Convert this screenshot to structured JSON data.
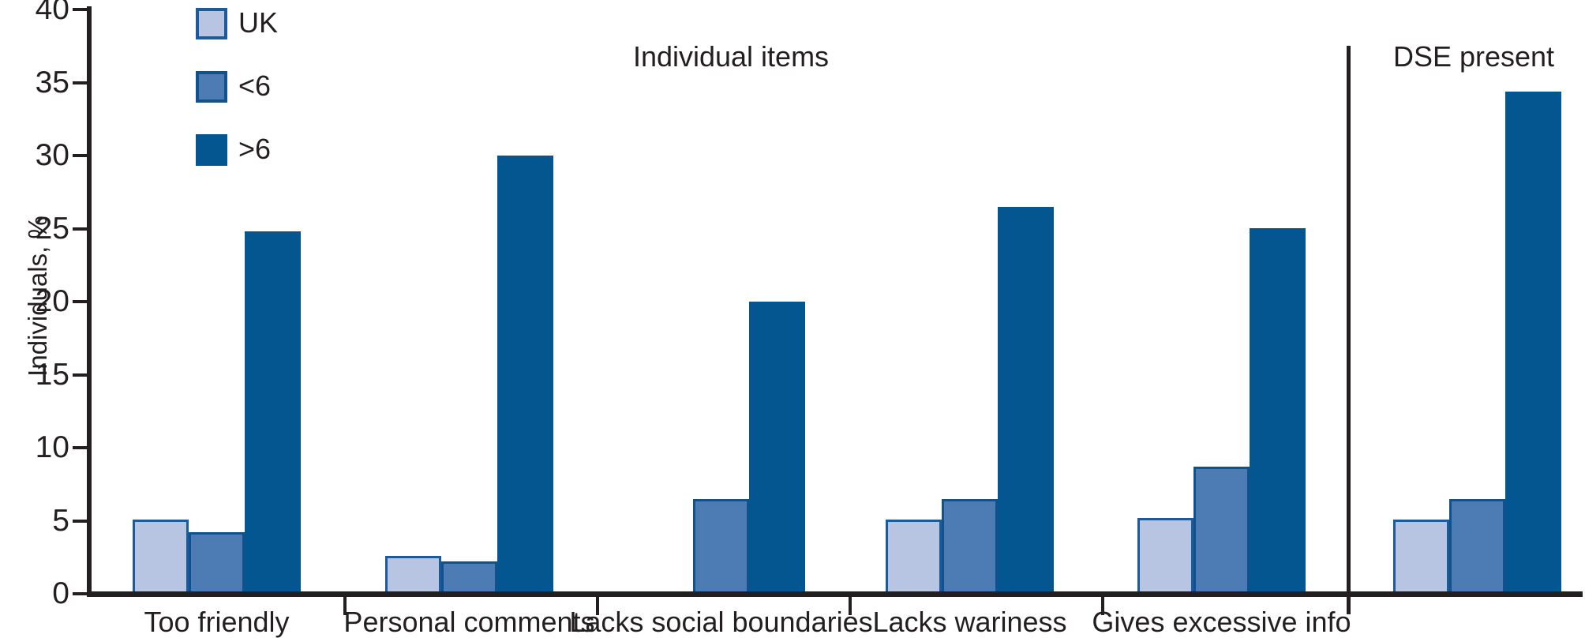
{
  "chart_data": {
    "type": "bar",
    "ylabel": "Individuals, %",
    "ylim": [
      0,
      40
    ],
    "yticks": [
      0,
      5,
      10,
      15,
      20,
      25,
      30,
      35,
      40
    ],
    "grid": false,
    "legend_position": "top-left",
    "section_labels": {
      "left": "Individual items",
      "right": "DSE present"
    },
    "categories": [
      "Too friendly",
      "Personal comments",
      "Lacks social boundaries",
      "Lacks wariness",
      "Gives excessive info",
      "DSE present"
    ],
    "bottom_axis_labels": [
      "Too friendly",
      "Personal comments",
      "Lacks social boundaries",
      "Lacks wariness",
      "Gives excessive info"
    ],
    "series": [
      {
        "name": "UK",
        "fill": "#b7c5e2",
        "border": "#1b5a9b",
        "values": [
          5.1,
          2.6,
          0,
          5.1,
          5.2,
          5.1
        ]
      },
      {
        "name": "<6",
        "fill": "#4d7cb5",
        "border": "#11528d",
        "values": [
          4.2,
          2.2,
          6.5,
          6.5,
          8.7,
          6.5
        ]
      },
      {
        "name": ">6",
        "fill": "#045691",
        "border": "#045691",
        "values": [
          24.8,
          30.0,
          20.0,
          26.5,
          25.0,
          34.4
        ]
      }
    ],
    "axis_color": "#231f20",
    "separator_between": [
      "Gives excessive info",
      "DSE present"
    ]
  }
}
